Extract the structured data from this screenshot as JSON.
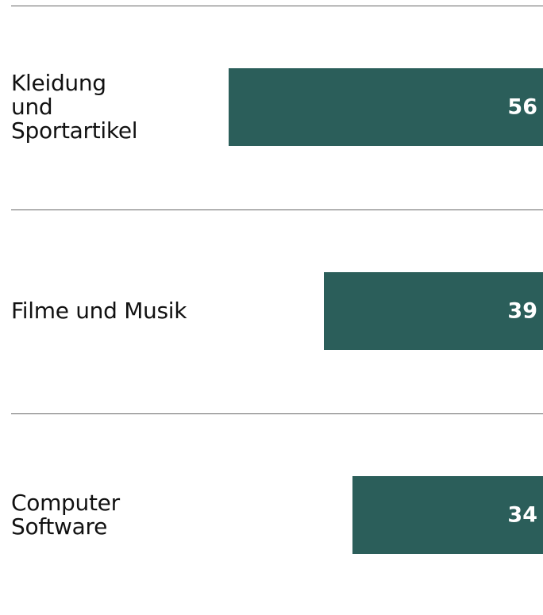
{
  "chart_data": {
    "type": "bar",
    "orientation": "horizontal",
    "categories": [
      "Kleidung\nund\nSportartikel",
      "Filme und Musik",
      "Computer\nSoftware"
    ],
    "values": [
      56,
      39,
      34
    ],
    "color": "#2b5e5a"
  }
}
